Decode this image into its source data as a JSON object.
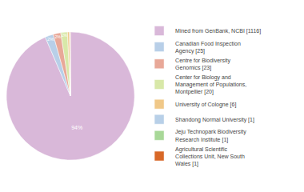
{
  "chart_data": {
    "type": "pie",
    "categories": [
      "Mined from GenBank, NCBI [1116]",
      "Canadian Food Inspection\nAgency [25]",
      "Centre for Biodiversity\nGenomics [23]",
      "Center for Biology and\nManagement of Populations,\nMontpellier [20]",
      "University of Cologne [6]",
      "Shandong Normal University [1]",
      "Jeju Technopark Biodiversity\nResearch Institute [1]",
      "Agricultural Scientific\nCollections Unit, New South\nWales [1]"
    ],
    "values": [
      93.55,
      2.1,
      1.93,
      1.68,
      0.5,
      0.08,
      0.08,
      0.08
    ],
    "value_labels": [
      "94%",
      "2%",
      "2%",
      "2%",
      null,
      null,
      null,
      null
    ],
    "data_labels": true,
    "colors": [
      "#d9b8d9",
      "#b8cfe8",
      "#e8a898",
      "#d8e8a8",
      "#f0c888",
      "#b8d0e8",
      "#a8d898",
      "#d86828"
    ],
    "legend": "right"
  }
}
